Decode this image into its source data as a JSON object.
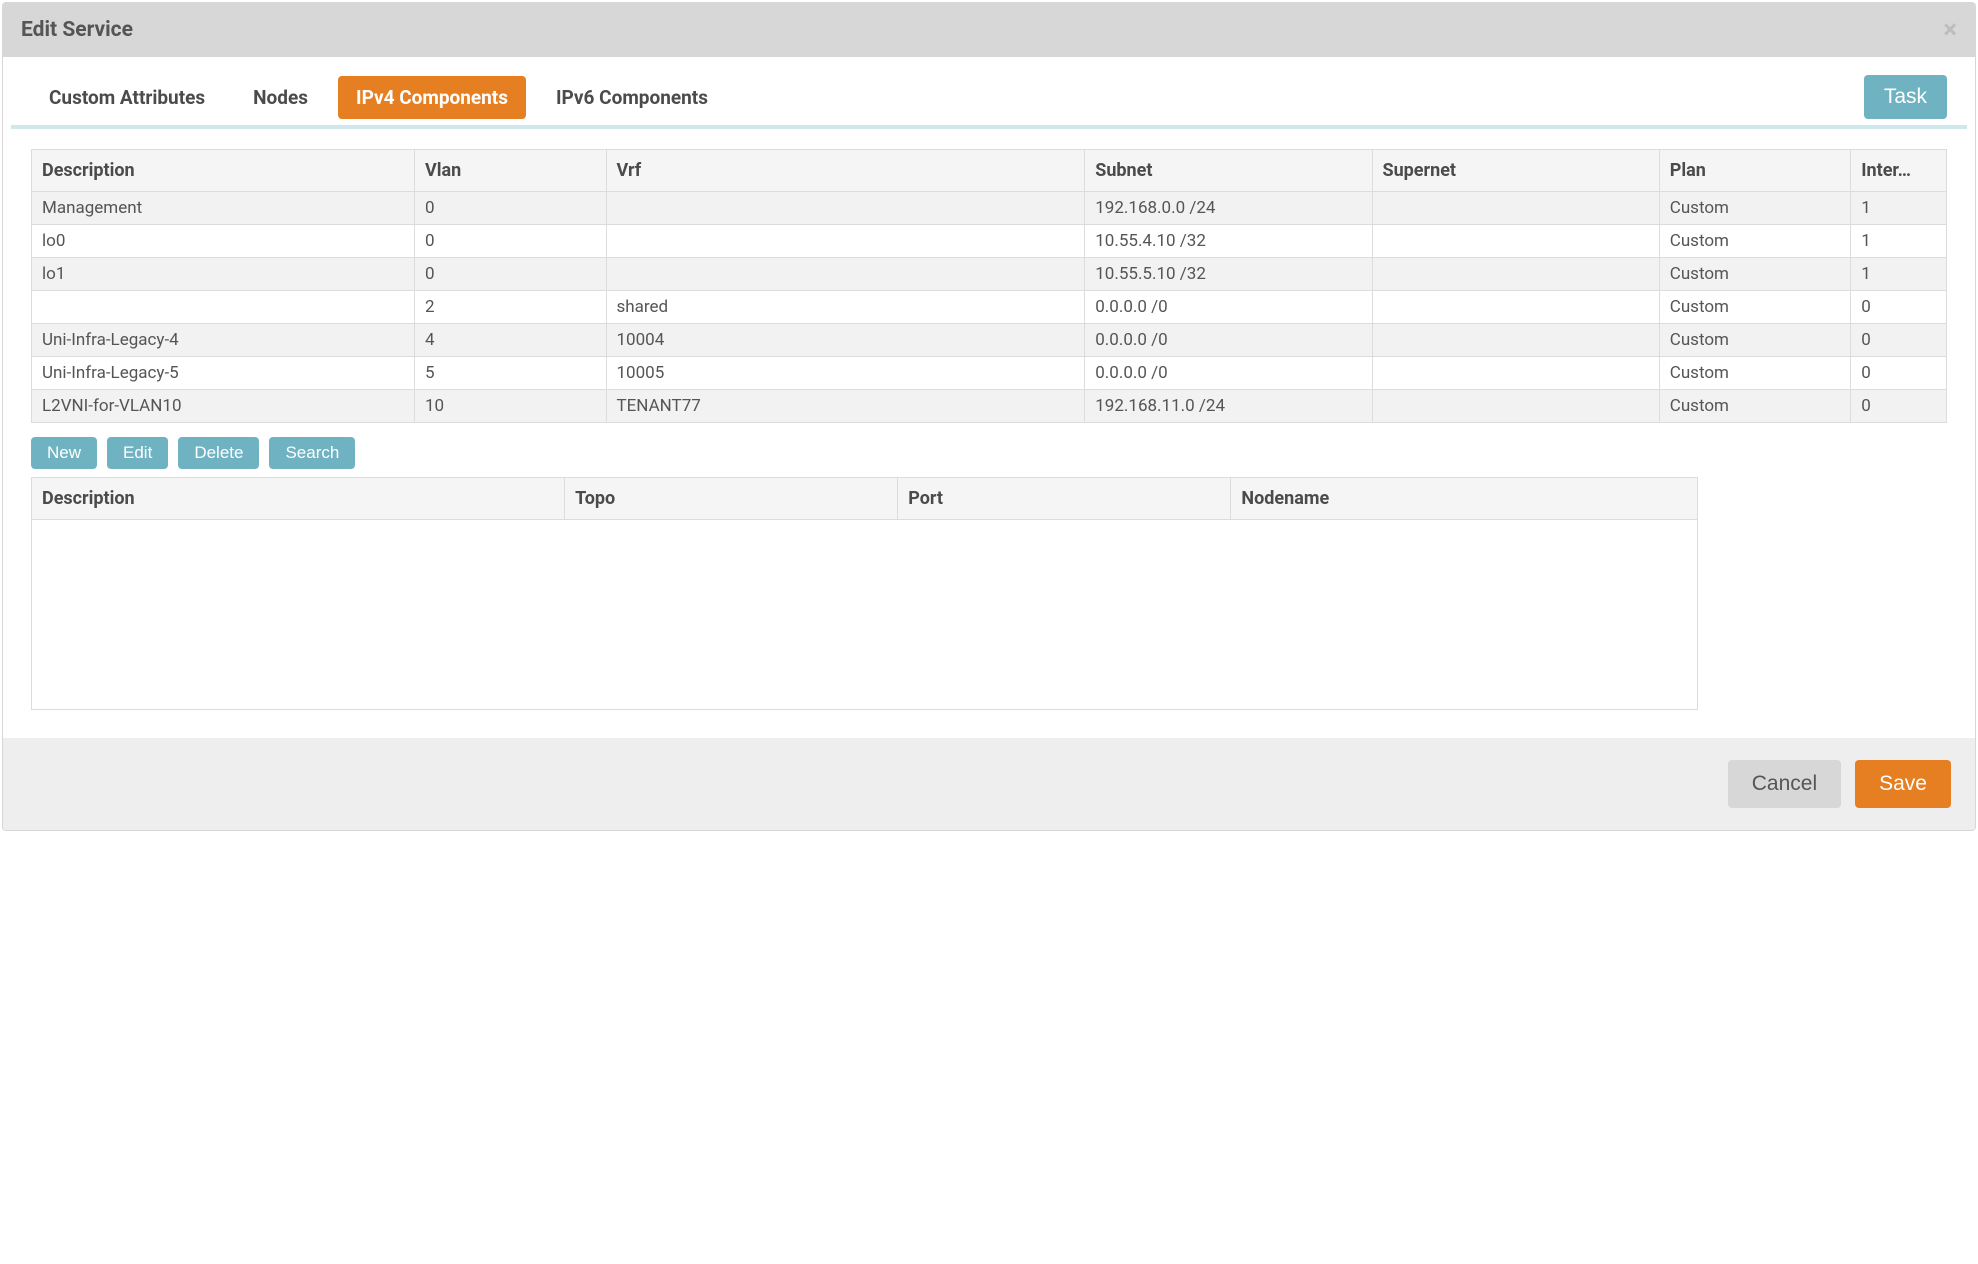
{
  "modal": {
    "title": "Edit Service",
    "close_icon": "×"
  },
  "tabs": {
    "items": [
      {
        "label": "Custom Attributes",
        "active": false
      },
      {
        "label": "Nodes",
        "active": false
      },
      {
        "label": "IPv4 Components",
        "active": true
      },
      {
        "label": "IPv6 Components",
        "active": false
      }
    ],
    "task_button": "Task"
  },
  "main_table": {
    "columns": [
      "Description",
      "Vlan",
      "Vrf",
      "Subnet",
      "Supernet",
      "Plan",
      "Inter…"
    ],
    "col_widths": [
      "20%",
      "10%",
      "25%",
      "15%",
      "15%",
      "10%",
      "5%"
    ],
    "rows": [
      {
        "description": "Management",
        "vlan": "0",
        "vrf": "",
        "subnet": "192.168.0.0 /24",
        "supernet": "",
        "plan": "Custom",
        "inter": "1"
      },
      {
        "description": "lo0",
        "vlan": "0",
        "vrf": "",
        "subnet": "10.55.4.10 /32",
        "supernet": "",
        "plan": "Custom",
        "inter": "1"
      },
      {
        "description": "lo1",
        "vlan": "0",
        "vrf": "",
        "subnet": "10.55.5.10 /32",
        "supernet": "",
        "plan": "Custom",
        "inter": "1"
      },
      {
        "description": "",
        "vlan": "2",
        "vrf": "shared",
        "subnet": "0.0.0.0 /0",
        "supernet": "",
        "plan": "Custom",
        "inter": "0"
      },
      {
        "description": "Uni-Infra-Legacy-4",
        "vlan": "4",
        "vrf": "10004",
        "subnet": "0.0.0.0 /0",
        "supernet": "",
        "plan": "Custom",
        "inter": "0"
      },
      {
        "description": "Uni-Infra-Legacy-5",
        "vlan": "5",
        "vrf": "10005",
        "subnet": "0.0.0.0 /0",
        "supernet": "",
        "plan": "Custom",
        "inter": "0"
      },
      {
        "description": "L2VNI-for-VLAN10",
        "vlan": "10",
        "vrf": "TENANT77",
        "subnet": "192.168.11.0 /24",
        "supernet": "",
        "plan": "Custom",
        "inter": "0"
      }
    ]
  },
  "actions": {
    "new": "New",
    "edit": "Edit",
    "delete": "Delete",
    "search": "Search"
  },
  "sub_table": {
    "columns": [
      "Description",
      "Topo",
      "Port",
      "Nodename"
    ]
  },
  "footer": {
    "cancel": "Cancel",
    "save": "Save"
  },
  "colors": {
    "accent_orange": "#e67e22",
    "accent_teal": "#6fb3c3",
    "header_grey": "#d7d7d7",
    "footer_grey": "#eeeeee",
    "divider_blue": "#cfe7ee",
    "border_grey": "#dcdcdc",
    "row_stripe": "#f2f2f2",
    "text": "#555555"
  }
}
